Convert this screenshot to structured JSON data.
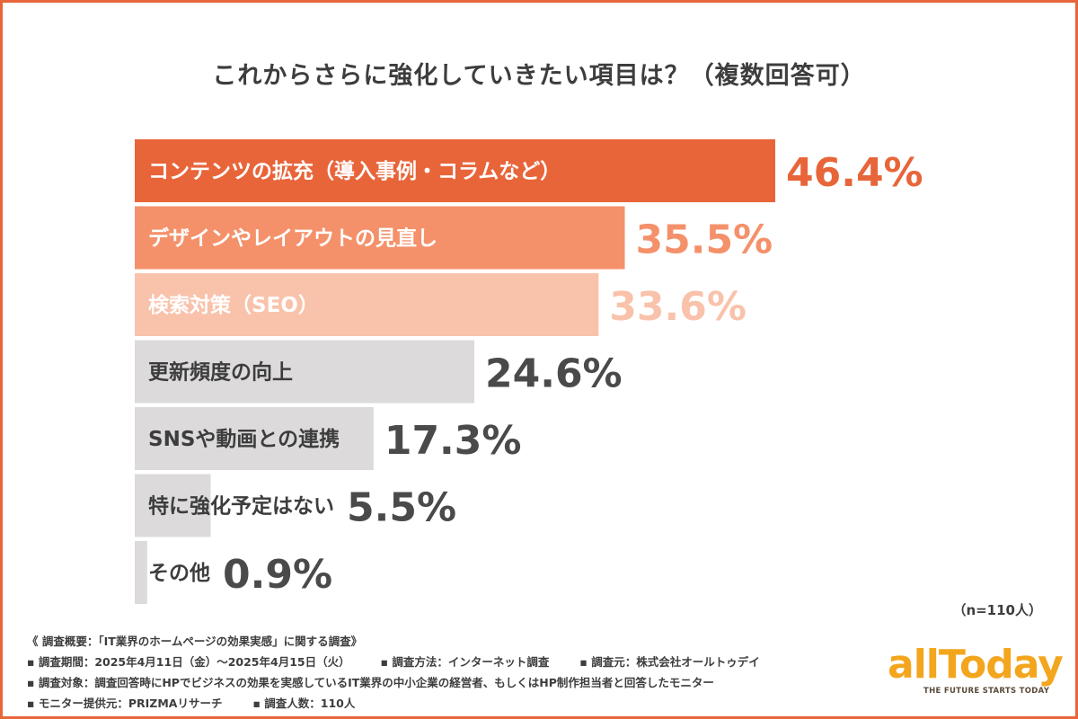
{
  "title": "これからさらに強化していきたい項目は？（複数回答可）",
  "chart_data": {
    "type": "bar",
    "orientation": "horizontal",
    "title": "これからさらに強化していきたい項目は？（複数回答可）",
    "categories": [
      "コンテンツの拡充（導入事例・コラムなど）",
      "デザインやレイアウトの見直し",
      "検索対策（SEO）",
      "更新頻度の向上",
      "SNSや動画との連携",
      "特に強化予定はない",
      "その他"
    ],
    "values": [
      46.4,
      35.5,
      33.6,
      24.6,
      17.3,
      5.5,
      0.9
    ],
    "value_labels": [
      "46.4%",
      "35.5%",
      "33.6%",
      "24.6%",
      "17.3%",
      "5.5%",
      "0.9%"
    ],
    "unit": "%",
    "xlim": [
      0,
      46.4
    ],
    "grid": false,
    "legend": "none",
    "colors": {
      "bars": [
        "#e8653a",
        "#f4916a",
        "#f9c2aa",
        "#dcdadb",
        "#dcdadb",
        "#dcdadb",
        "#dcdadb"
      ],
      "value_text": [
        "#e8653a",
        "#f4916a",
        "#f9c2aa",
        "#4a4a4a",
        "#4a4a4a",
        "#4a4a4a",
        "#4a4a4a"
      ],
      "label_text": [
        "#ffffff",
        "#ffffff",
        "#ffffff",
        "#3d3d3d",
        "#3d3d3d",
        "#3d3d3d",
        "#3d3d3d"
      ]
    }
  },
  "sample_note": "（n=110人）",
  "footnotes": {
    "overview": "《 調査概要：「IT業界のホームページの効果実感」に関する調査》",
    "period": "▪ 調査期間：2025年4月11日（金）〜2025年4月15日（火）",
    "method": "▪ 調査方法：インターネット調査",
    "organizer": "▪ 調査元：株式会社オールトゥデイ",
    "target": "▪ 調査対象：調査回答時にHPでビジネスの効果を実感しているIT業界の中小企業の経営者、もしくはHP制作担当者と回答したモニター",
    "provider": "▪ モニター提供元：PRIZMAリサーチ",
    "respondents": "▪ 調査人数：110人"
  },
  "logo": {
    "name": "allToday",
    "tagline": "THE FUTURE STARTS TODAY",
    "color": "#f3a61d"
  },
  "accent_color": "#e8653a"
}
